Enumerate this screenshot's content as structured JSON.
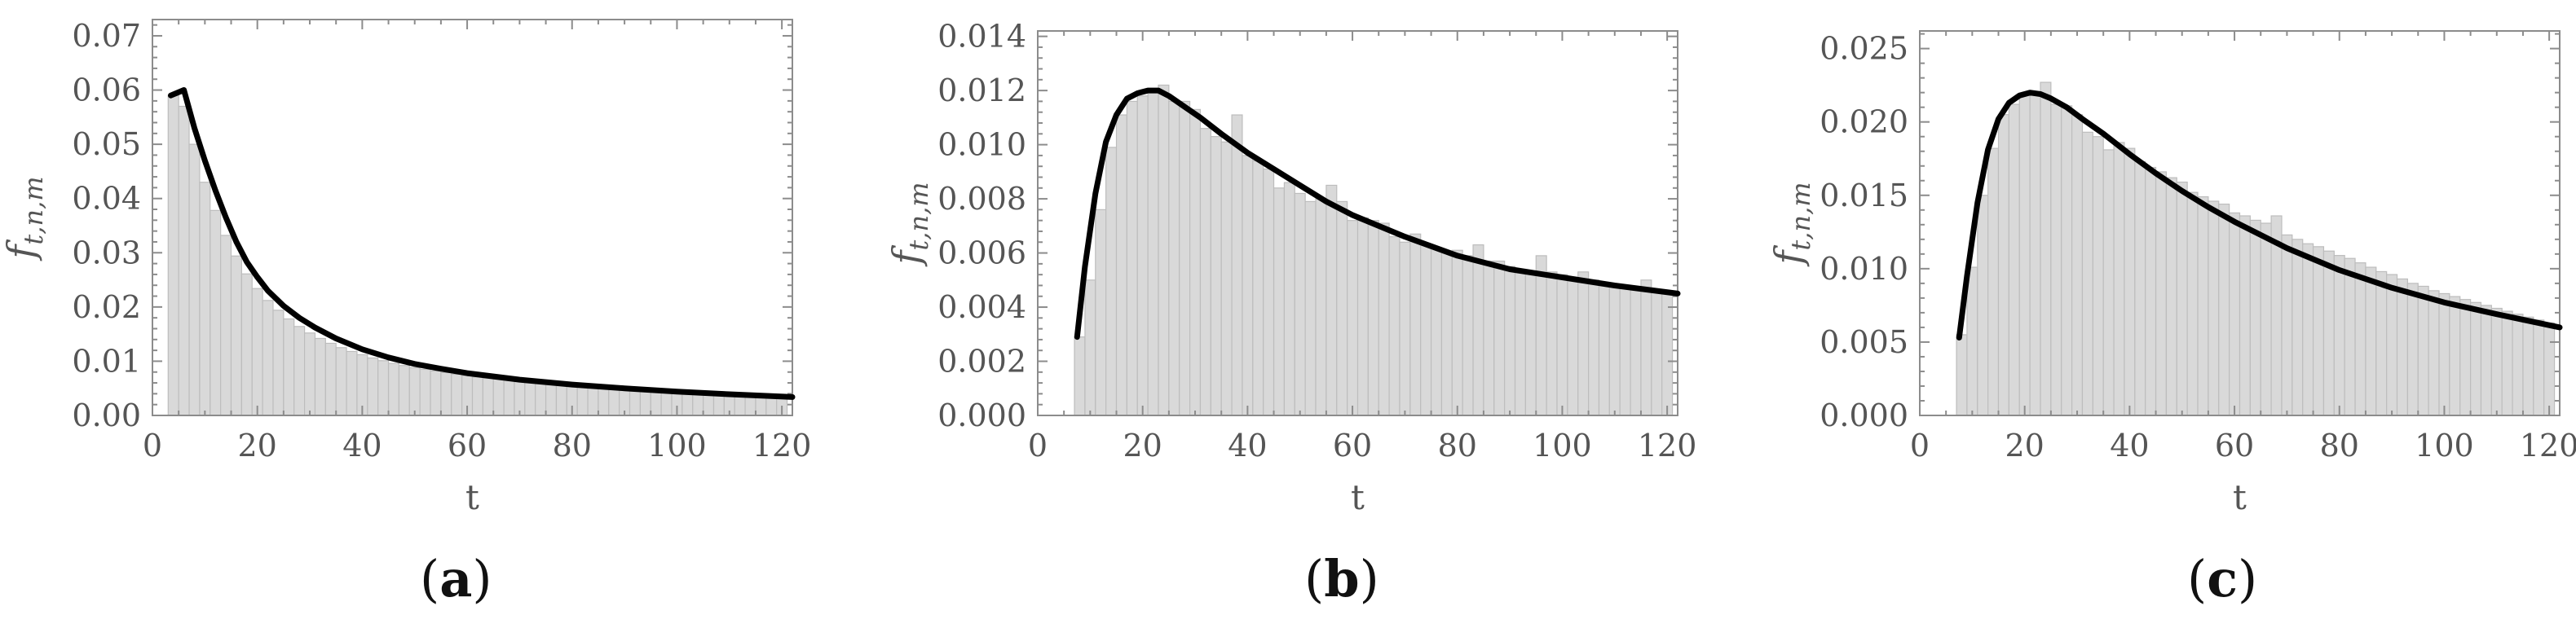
{
  "chart_data": [
    {
      "type": "bar",
      "panel_label": "a",
      "xlabel": "t",
      "ylabel": "f_{t,n,m}",
      "xlim": [
        0,
        122
      ],
      "ylim": [
        0,
        0.073
      ],
      "xticks": [
        0,
        20,
        40,
        60,
        80,
        100,
        120
      ],
      "xtick_labels": [
        "0",
        "20",
        "40",
        "60",
        "80",
        "100",
        "120"
      ],
      "yticks": [
        0.0,
        0.01,
        0.02,
        0.03,
        0.04,
        0.05,
        0.06,
        0.07
      ],
      "ytick_labels": [
        "0.00",
        "0.01",
        "0.02",
        "0.03",
        "0.04",
        "0.05",
        "0.06",
        "0.07"
      ],
      "bin_width": 2,
      "histogram": {
        "bin_start": [
          3,
          5,
          7,
          9,
          11,
          13,
          15,
          17,
          19,
          21,
          23,
          25,
          27,
          29,
          31,
          33,
          35,
          37,
          39,
          41,
          43,
          45,
          47,
          49,
          51,
          53,
          55,
          57,
          59,
          61,
          63,
          65,
          67,
          69,
          71,
          73,
          75,
          77,
          79,
          81,
          83,
          85,
          87,
          89,
          91,
          93,
          95,
          97,
          99,
          101,
          103,
          105,
          107,
          109,
          111,
          113,
          115,
          117,
          119
        ],
        "values": [
          0.059,
          0.057,
          0.05,
          0.043,
          0.0378,
          0.0332,
          0.0294,
          0.0261,
          0.0234,
          0.0212,
          0.0194,
          0.0178,
          0.0164,
          0.0152,
          0.0142,
          0.0133,
          0.0125,
          0.0118,
          0.0112,
          0.0106,
          0.0101,
          0.0096,
          0.0092,
          0.0088,
          0.0085,
          0.0082,
          0.0079,
          0.0076,
          0.0073,
          0.0071,
          0.0069,
          0.0067,
          0.0065,
          0.0063,
          0.0061,
          0.006,
          0.0058,
          0.0057,
          0.0055,
          0.0054,
          0.0053,
          0.0052,
          0.0051,
          0.005,
          0.0049,
          0.0048,
          0.0047,
          0.0046,
          0.0045,
          0.0044,
          0.0044,
          0.0043,
          0.0042,
          0.0041,
          0.0041,
          0.004,
          0.0039,
          0.0039,
          0.0038
        ]
      },
      "curve": {
        "x": [
          3.5,
          6,
          8,
          10,
          12,
          14,
          16,
          18,
          20,
          22,
          25,
          28,
          31,
          35,
          40,
          45,
          50,
          55,
          60,
          70,
          80,
          90,
          100,
          110,
          122
        ],
        "y": [
          0.059,
          0.06,
          0.053,
          0.047,
          0.0415,
          0.0365,
          0.032,
          0.0283,
          0.0255,
          0.023,
          0.0202,
          0.018,
          0.0162,
          0.0142,
          0.0122,
          0.0107,
          0.0095,
          0.0086,
          0.0078,
          0.0066,
          0.0057,
          0.005,
          0.0044,
          0.0039,
          0.0034
        ]
      }
    },
    {
      "type": "bar",
      "panel_label": "b",
      "xlabel": "t",
      "ylabel": "f_{t,n,m}",
      "xlim": [
        0,
        122
      ],
      "ylim": [
        0,
        0.0142
      ],
      "xticks": [
        0,
        20,
        40,
        60,
        80,
        100,
        120
      ],
      "xtick_labels": [
        "0",
        "20",
        "40",
        "60",
        "80",
        "100",
        "120"
      ],
      "yticks": [
        0.0,
        0.002,
        0.004,
        0.006,
        0.008,
        0.01,
        0.012,
        0.014
      ],
      "ytick_labels": [
        "0.000",
        "0.002",
        "0.004",
        "0.006",
        "0.008",
        "0.010",
        "0.012",
        "0.014"
      ],
      "bin_width": 2,
      "histogram": {
        "bin_start": [
          7,
          9,
          11,
          13,
          15,
          17,
          19,
          21,
          23,
          25,
          27,
          29,
          31,
          33,
          35,
          37,
          39,
          41,
          43,
          45,
          47,
          49,
          51,
          53,
          55,
          57,
          59,
          61,
          63,
          65,
          67,
          69,
          71,
          73,
          75,
          77,
          79,
          81,
          83,
          85,
          87,
          89,
          91,
          93,
          95,
          97,
          99,
          101,
          103,
          105,
          107,
          109,
          111,
          113,
          115,
          117,
          119
        ],
        "values": [
          0.0029,
          0.005,
          0.0076,
          0.0099,
          0.0111,
          0.0116,
          0.0118,
          0.012,
          0.0122,
          0.0116,
          0.0116,
          0.0113,
          0.0106,
          0.0103,
          0.0101,
          0.0111,
          0.0096,
          0.0094,
          0.0091,
          0.0084,
          0.0086,
          0.0082,
          0.0079,
          0.008,
          0.0085,
          0.0079,
          0.0072,
          0.0073,
          0.0072,
          0.0071,
          0.0066,
          0.0064,
          0.0067,
          0.0063,
          0.0062,
          0.006,
          0.0061,
          0.0059,
          0.0063,
          0.0057,
          0.0057,
          0.0055,
          0.0054,
          0.0053,
          0.0059,
          0.0053,
          0.0052,
          0.0051,
          0.0053,
          0.005,
          0.0049,
          0.0048,
          0.0048,
          0.0047,
          0.005,
          0.0046,
          0.0045
        ]
      },
      "curve": {
        "x": [
          7.5,
          9,
          11,
          13,
          15,
          17,
          19,
          21,
          23,
          25,
          28,
          31,
          35,
          40,
          45,
          50,
          55,
          60,
          70,
          80,
          90,
          100,
          110,
          122
        ],
        "y": [
          0.0029,
          0.0055,
          0.0082,
          0.0101,
          0.0111,
          0.0117,
          0.0119,
          0.012,
          0.012,
          0.0118,
          0.0114,
          0.011,
          0.0104,
          0.0097,
          0.0091,
          0.0085,
          0.0079,
          0.0074,
          0.0066,
          0.0059,
          0.0054,
          0.0051,
          0.0048,
          0.0045
        ]
      }
    },
    {
      "type": "bar",
      "panel_label": "c",
      "xlabel": "t",
      "ylabel": "f_{t,n,m}",
      "xlim": [
        0,
        122
      ],
      "ylim": [
        0,
        0.0262
      ],
      "xticks": [
        0,
        20,
        40,
        60,
        80,
        100,
        120
      ],
      "xtick_labels": [
        "0",
        "20",
        "40",
        "60",
        "80",
        "100",
        "120"
      ],
      "yticks": [
        0.0,
        0.005,
        0.01,
        0.015,
        0.02,
        0.025
      ],
      "ytick_labels": [
        "0.000",
        "0.005",
        "0.010",
        "0.015",
        "0.020",
        "0.025"
      ],
      "bin_width": 2,
      "histogram": {
        "bin_start": [
          7,
          9,
          11,
          13,
          15,
          17,
          19,
          21,
          23,
          25,
          27,
          29,
          31,
          33,
          35,
          37,
          39,
          41,
          43,
          45,
          47,
          49,
          51,
          53,
          55,
          57,
          59,
          61,
          63,
          65,
          67,
          69,
          71,
          73,
          75,
          77,
          79,
          81,
          83,
          85,
          87,
          89,
          91,
          93,
          95,
          97,
          99,
          101,
          103,
          105,
          107,
          109,
          111,
          113,
          115,
          117,
          119
        ],
        "values": [
          0.0055,
          0.0101,
          0.015,
          0.0182,
          0.0205,
          0.0212,
          0.0218,
          0.022,
          0.0227,
          0.0212,
          0.0211,
          0.0205,
          0.0193,
          0.019,
          0.0181,
          0.0186,
          0.0182,
          0.0173,
          0.0169,
          0.0166,
          0.0162,
          0.0159,
          0.0152,
          0.0149,
          0.0146,
          0.0144,
          0.0138,
          0.0136,
          0.0133,
          0.0131,
          0.0136,
          0.0123,
          0.012,
          0.0117,
          0.0115,
          0.0112,
          0.0109,
          0.0107,
          0.0104,
          0.0101,
          0.0098,
          0.0096,
          0.0093,
          0.009,
          0.0088,
          0.0085,
          0.0083,
          0.0081,
          0.0079,
          0.0077,
          0.0075,
          0.0073,
          0.0071,
          0.0069,
          0.0067,
          0.0065,
          0.0063
        ]
      },
      "curve": {
        "x": [
          7.5,
          9,
          11,
          13,
          15,
          17,
          19,
          21,
          23,
          25,
          28,
          31,
          35,
          40,
          45,
          50,
          55,
          60,
          70,
          80,
          90,
          100,
          110,
          122
        ],
        "y": [
          0.0053,
          0.0095,
          0.0145,
          0.0181,
          0.0202,
          0.0213,
          0.0218,
          0.022,
          0.0219,
          0.0216,
          0.021,
          0.0202,
          0.0192,
          0.0178,
          0.0165,
          0.0153,
          0.0142,
          0.0132,
          0.0114,
          0.0099,
          0.0087,
          0.0077,
          0.0069,
          0.006
        ]
      }
    }
  ]
}
